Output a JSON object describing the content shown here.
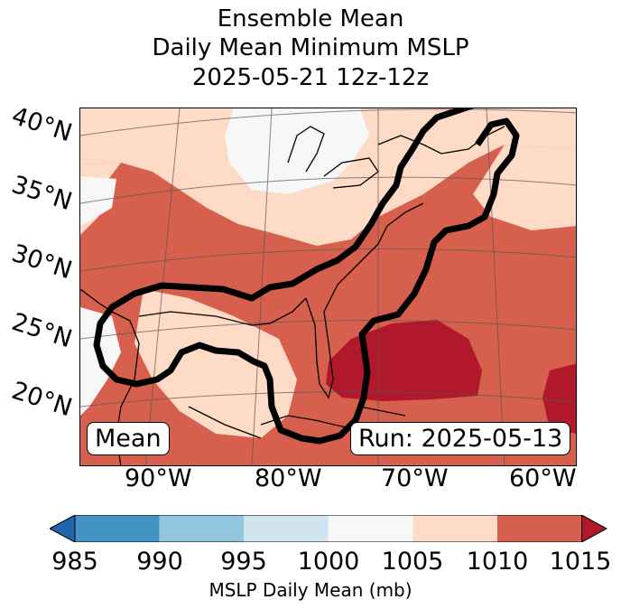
{
  "title": {
    "line1": "Ensemble Mean",
    "line2": "Daily Mean Minimum MSLP",
    "line3": "2025-05-21 12z-12z"
  },
  "map": {
    "lat_labels": [
      "40°N",
      "35°N",
      "30°N",
      "25°N",
      "20°N"
    ],
    "lon_labels": [
      "90°W",
      "80°W",
      "70°W",
      "60°W"
    ],
    "left_box": "Mean",
    "right_box": "Run: 2025-05-13",
    "region_colors": {
      "c1000": "#f7f7f7",
      "c1005": "#fddbc7",
      "c1010": "#d6604d",
      "c1015": "#b2182b"
    }
  },
  "colorbar": {
    "ticks": [
      "985",
      "990",
      "995",
      "1000",
      "1005",
      "1010",
      "1015"
    ],
    "colors": [
      "#4393c3",
      "#92c5de",
      "#d1e5f0",
      "#f7f7f7",
      "#fddbc7",
      "#d6604d"
    ],
    "under_color": "#2166ac",
    "over_color": "#b2182b",
    "label": "MSLP Daily Mean (mb)"
  }
}
